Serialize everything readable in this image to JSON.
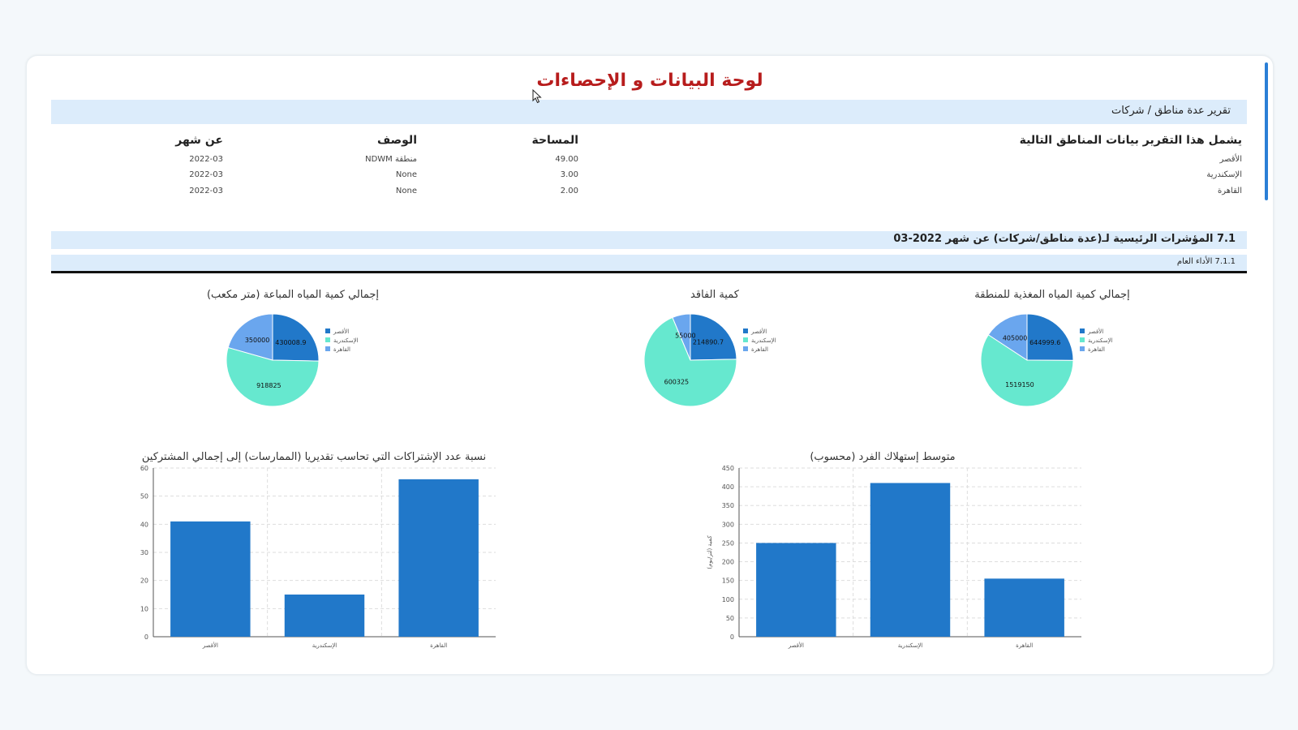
{
  "title": "لوحة البيانات و الإحصاءات",
  "report_label": "تقرير عدة مناطق / شركات",
  "regions_table": {
    "right_heading": "يشمل هذا التقرير بيانات المناطق التالية",
    "headers": {
      "area": "المساحة",
      "description": "الوصف",
      "month": "عن شهر"
    },
    "rows": [
      {
        "name": "الأقصر",
        "area": "49.00",
        "description": "منطقة NDWM",
        "month": "2022-03"
      },
      {
        "name": "الإسكندرية",
        "area": "3.00",
        "description": "None",
        "month": "2022-03"
      },
      {
        "name": "القاهرة",
        "area": "2.00",
        "description": "None",
        "month": "2022-03"
      }
    ]
  },
  "kpi_label": "7.1 المؤشرات الرئيسية لـ(عدة مناطق/شركات) عن شهر 2022-03",
  "perf_label": "7.1.1 الأداء العام",
  "colors": {
    "c1": "#2178c9",
    "c2": "#66e8cf",
    "c3": "#6aa6ee",
    "bar": "#2178c9",
    "title": "#b71c1c"
  },
  "chart_data": [
    {
      "type": "pie",
      "title": "إجمالي كمية المياه المغذية للمنطقة",
      "labels": [
        "الأقصر",
        "الإسكندرية",
        "القاهرة"
      ],
      "values": [
        644999.6,
        1519150,
        405000
      ]
    },
    {
      "type": "pie",
      "title": "كمية الفاقد",
      "labels": [
        "الأقصر",
        "الإسكندرية",
        "القاهرة"
      ],
      "values": [
        214890.7,
        600325,
        55000
      ]
    },
    {
      "type": "pie",
      "title": "إجمالي كمية المياه المباعة (متر مكعب)",
      "labels": [
        "الأقصر",
        "الإسكندرية",
        "القاهرة"
      ],
      "values": [
        430008.9,
        918825,
        350000
      ]
    },
    {
      "type": "bar",
      "title": "متوسط إستهلاك الفرد (محسوب)",
      "ylabel": "كمية (لتر/يوم)",
      "categories": [
        "الأقصر",
        "الإسكندرية",
        "القاهرة"
      ],
      "values": [
        250,
        410,
        155
      ],
      "ylim": [
        0,
        450
      ],
      "yticks": [
        0,
        50,
        100,
        150,
        200,
        250,
        300,
        350,
        400,
        450
      ]
    },
    {
      "type": "bar",
      "title": "نسبة عدد الإشتراكات التي تحاسب تقديريا (الممارسات) إلى إجمالي المشتركين",
      "ylabel": "",
      "categories": [
        "الأقصر",
        "الإسكندرية",
        "القاهرة"
      ],
      "values": [
        41,
        15,
        56
      ],
      "ylim": [
        0,
        60
      ],
      "yticks": [
        0,
        10,
        20,
        30,
        40,
        50,
        60
      ]
    }
  ]
}
